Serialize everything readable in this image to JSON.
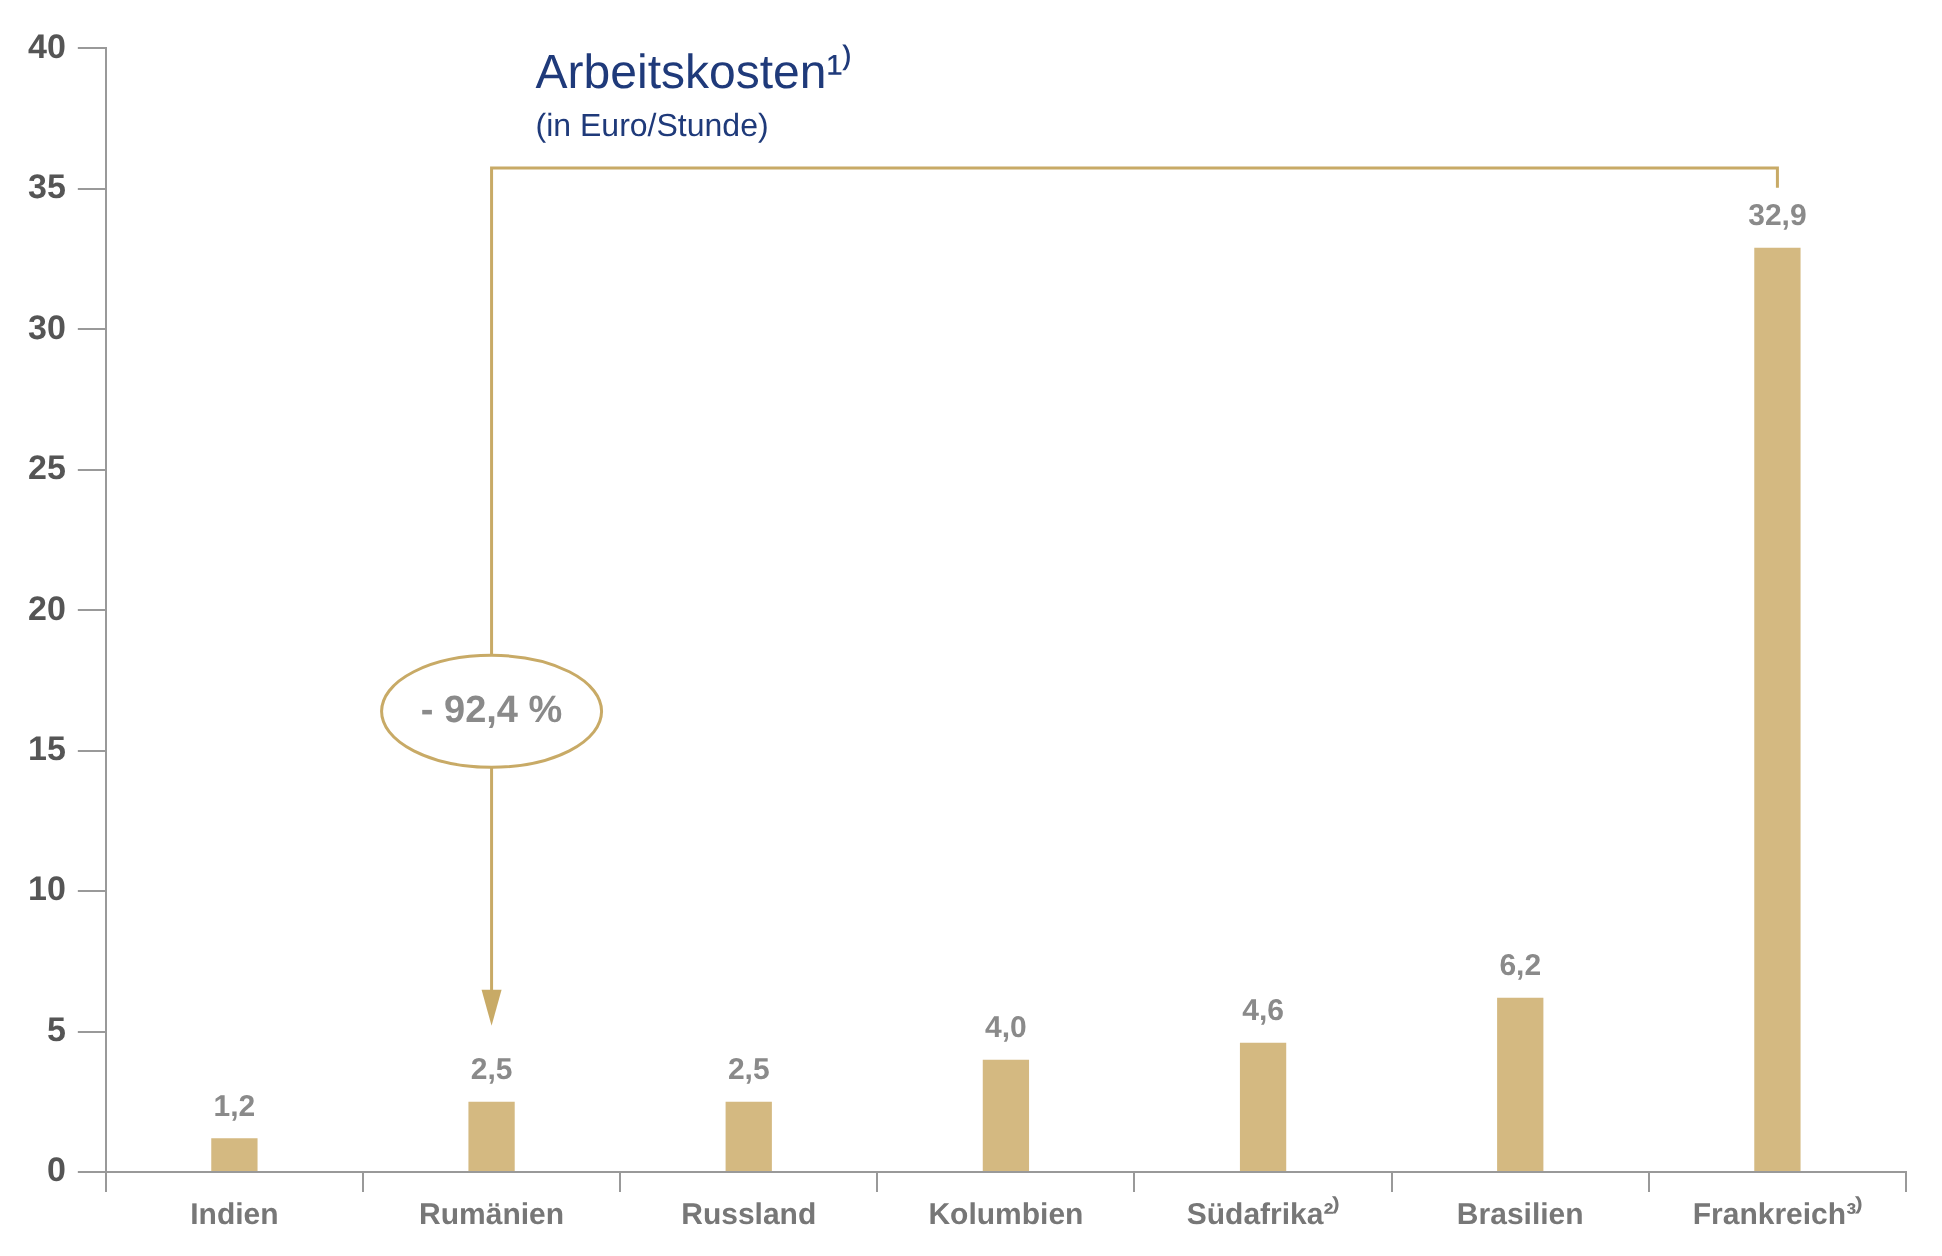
{
  "chart_data": {
    "type": "bar",
    "title": "Arbeitskosten¹⁾",
    "subtitle": "(in Euro/Stunde)",
    "categories": [
      "Indien",
      "Rumänien",
      "Russland",
      "Kolumbien",
      "Südafrika²⁾",
      "Brasilien",
      "Frankreich³⁾"
    ],
    "values": [
      1.2,
      2.5,
      2.5,
      4.0,
      4.6,
      6.2,
      32.9
    ],
    "color": "#d4b981",
    "value_labels": [
      "1,2",
      "2,5",
      "2,5",
      "4,0",
      "4,6",
      "6,2",
      "32,9"
    ],
    "ylim": [
      0,
      40
    ],
    "yticks": [
      0,
      5,
      10,
      15,
      20,
      25,
      30,
      35,
      40
    ],
    "grid": false,
    "legend": false,
    "annotations": [
      "- 92,4 %"
    ]
  }
}
